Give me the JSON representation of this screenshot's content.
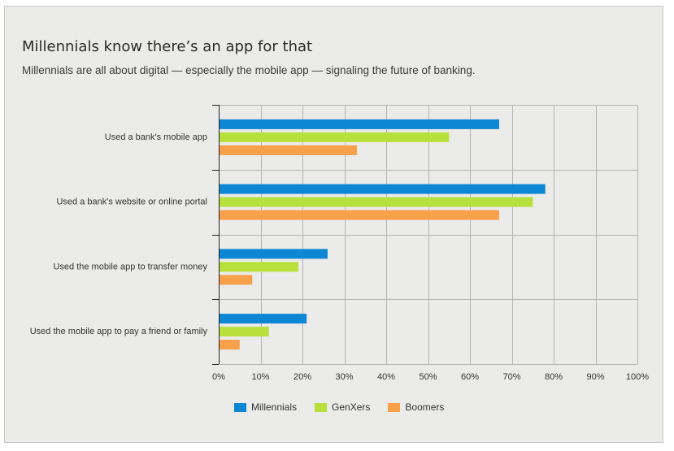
{
  "title": "Millennials know there’s an app for that",
  "subtitle": "Millennials are all about digital — especially the mobile app — signaling the future of banking.",
  "colors": {
    "Millennials": "#0d87d3",
    "GenXers": "#b8e03c",
    "Boomers": "#f9a04a",
    "grid": "#b4b4b4",
    "axis": "#222222"
  },
  "legend": [
    {
      "name": "Millennials",
      "color": "#0d87d3"
    },
    {
      "name": "GenXers",
      "color": "#b8e03c"
    },
    {
      "name": "Boomers",
      "color": "#f9a04a"
    }
  ],
  "chart_data": {
    "type": "bar",
    "orientation": "horizontal",
    "title": "Millennials know there’s an app for that",
    "subtitle": "Millennials are all about digital — especially the mobile app — signaling the future of banking.",
    "categories": [
      "Used a bank's mobile app",
      "Used a bank's website or online portal",
      "Used the mobile app to transfer money",
      "Used the mobile app to pay a friend or family"
    ],
    "series": [
      {
        "name": "Millennials",
        "values": [
          67,
          78,
          26,
          21
        ]
      },
      {
        "name": "GenXers",
        "values": [
          55,
          75,
          19,
          12
        ]
      },
      {
        "name": "Boomers",
        "values": [
          33,
          67,
          8,
          5
        ]
      }
    ],
    "xlim": [
      0,
      100
    ],
    "x_ticks": [
      "0%",
      "10%",
      "20%",
      "30%",
      "40%",
      "50%",
      "60%",
      "70%",
      "80%",
      "90%",
      "100%"
    ],
    "grid": true,
    "legend_position": "bottom"
  }
}
